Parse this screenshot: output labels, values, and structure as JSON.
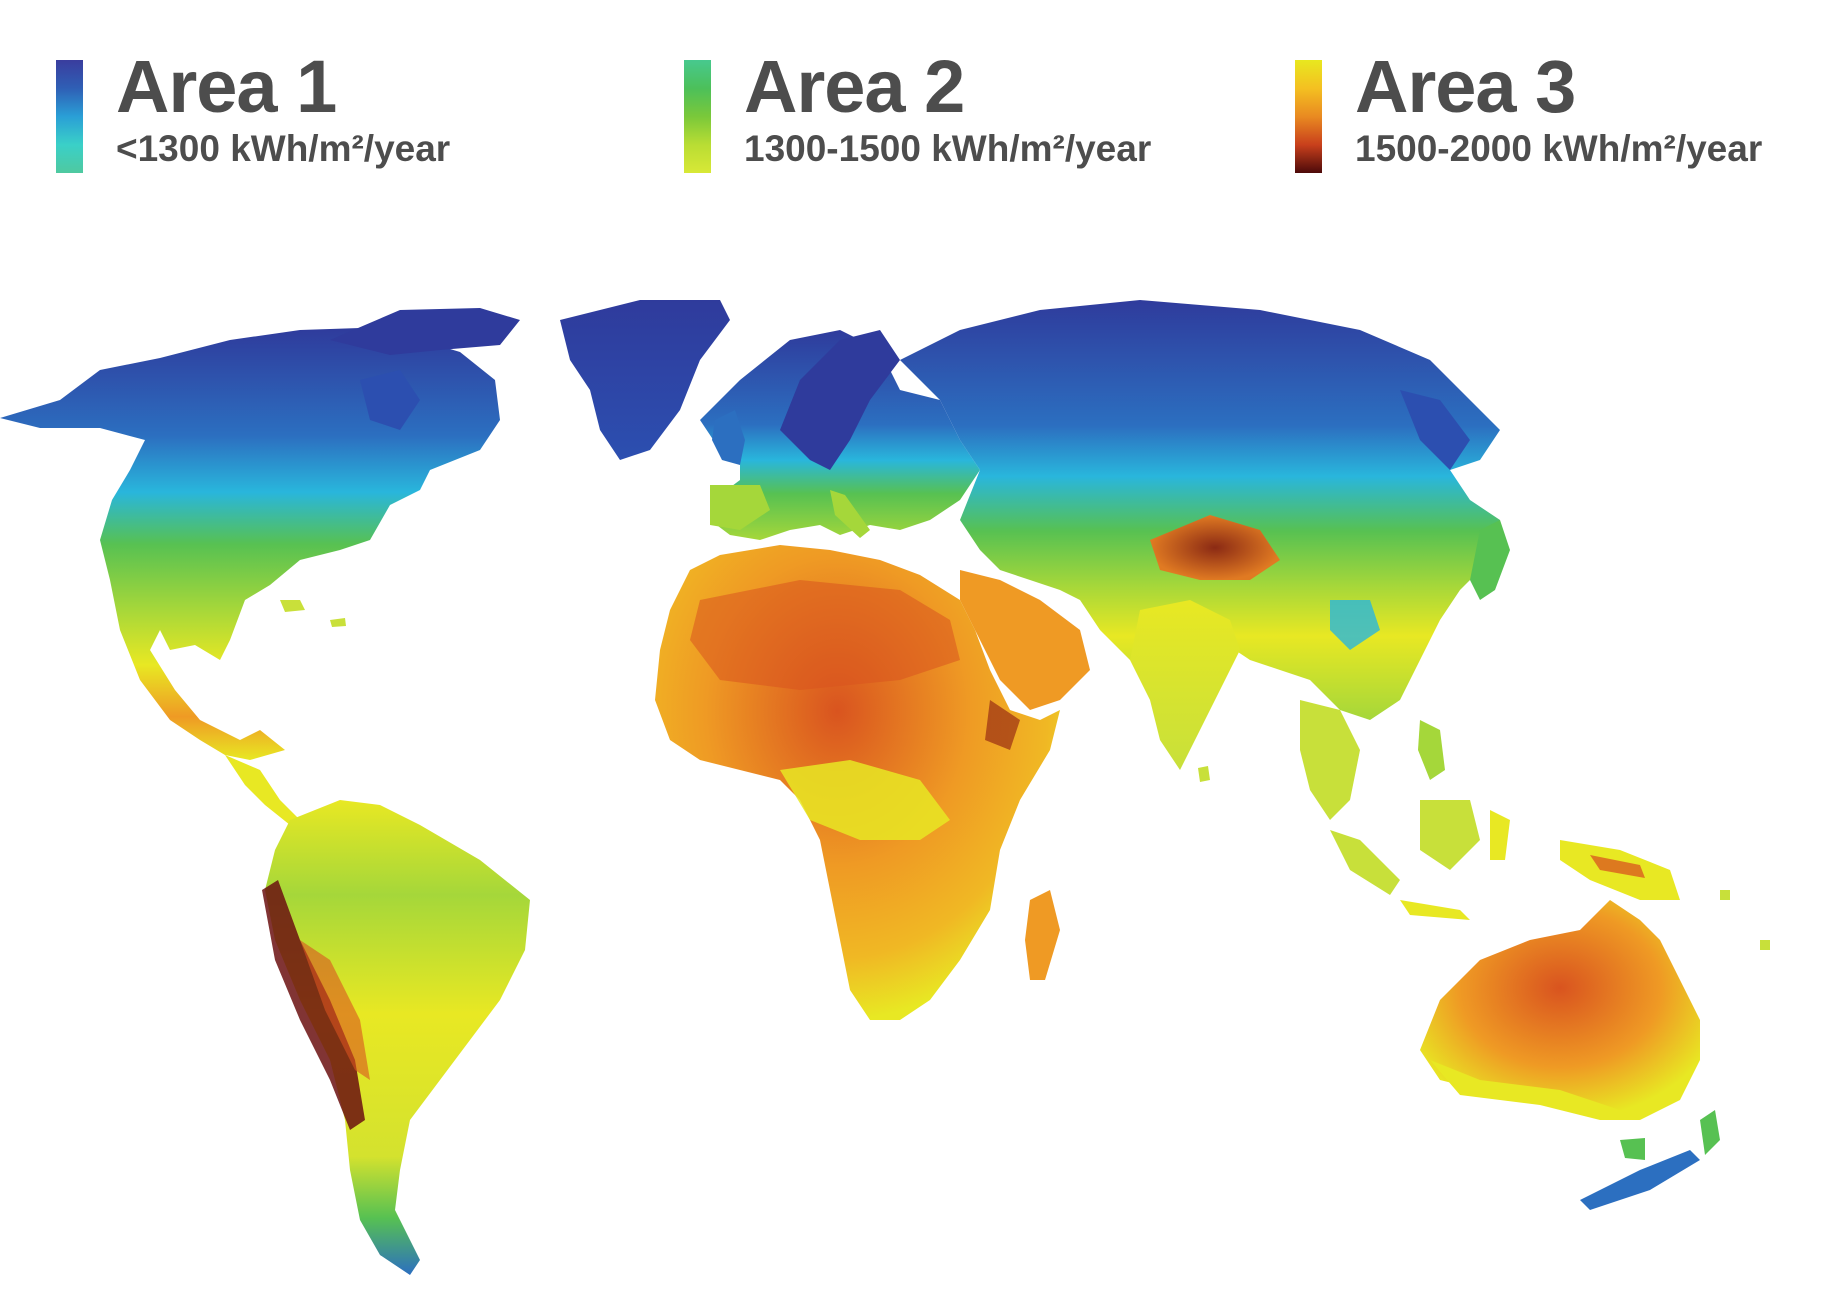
{
  "legend": {
    "items": [
      {
        "title": "Area 1",
        "range": "<1300 kWh/m²/year",
        "gradient": [
          "#3a3d9e",
          "#2f5fb5",
          "#2a9fd6",
          "#3ad0c8",
          "#4fc9a0"
        ]
      },
      {
        "title": "Area 2",
        "range": "1300-1500 kWh/m²/year",
        "gradient": [
          "#47c98e",
          "#4cc05a",
          "#7ac83a",
          "#b9dd34",
          "#d8e836"
        ]
      },
      {
        "title": "Area 3",
        "range": "1500-2000 kWh/m²/year",
        "gradient": [
          "#e8e81f",
          "#f4c021",
          "#e98a21",
          "#c9401c",
          "#4d0a0a"
        ]
      }
    ]
  },
  "map": {
    "ocean_color": "#ffffff",
    "colors": {
      "arctic": "#2f3b9c",
      "cold": "#2c6fc0",
      "cool": "#29b6dc",
      "temperate": "#57c152",
      "mild": "#a5d73a",
      "warm": "#e8e823",
      "hot": "#ef9a24",
      "very_hot": "#d9541f",
      "extreme": "#6b1010"
    }
  }
}
